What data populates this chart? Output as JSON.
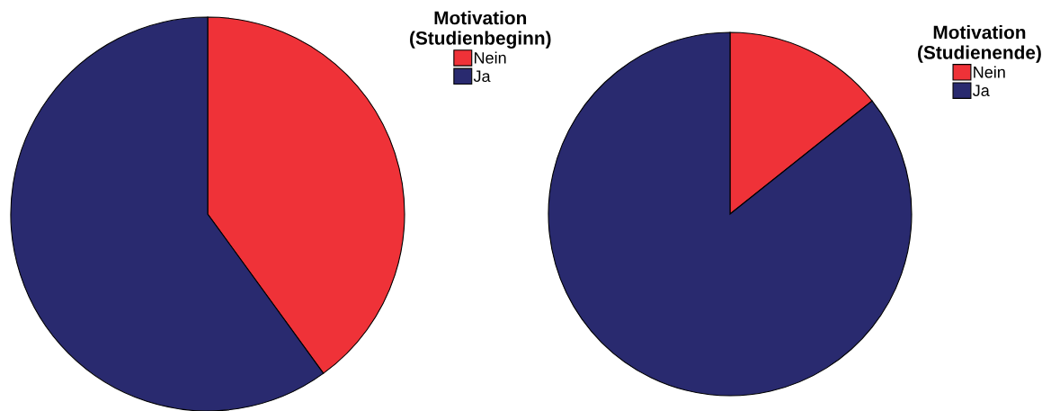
{
  "chart_data": [
    {
      "type": "pie",
      "legend_title": "Motivation\n(Studienbeginn)",
      "categories": [
        "Nein",
        "Ja"
      ],
      "values": [
        40,
        60
      ],
      "colors": [
        "#ef3238",
        "#292a6f"
      ],
      "legend": "top right"
    },
    {
      "type": "pie",
      "legend_title": "Motivation\n(Studienende)",
      "categories": [
        "Nein",
        "Ja"
      ],
      "values": [
        14.3,
        85.7
      ],
      "colors": [
        "#ef3238",
        "#292a6f"
      ],
      "legend": "top right"
    }
  ]
}
